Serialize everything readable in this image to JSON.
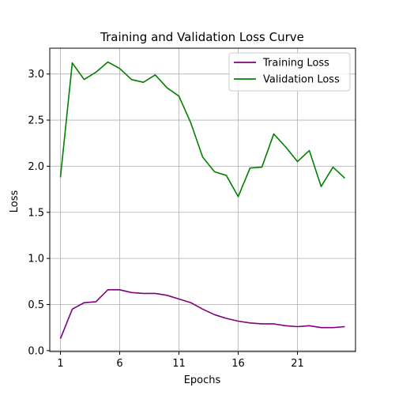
{
  "chart_data": {
    "type": "line",
    "title": "Training and Validation Loss Curve",
    "xlabel": "Epochs",
    "ylabel": "Loss",
    "x": [
      1,
      2,
      3,
      4,
      5,
      6,
      7,
      8,
      9,
      10,
      11,
      12,
      13,
      14,
      15,
      16,
      17,
      18,
      19,
      20,
      21,
      22,
      23,
      24,
      25
    ],
    "xticks": [
      1,
      6,
      11,
      16,
      21
    ],
    "yticks": [
      0.0,
      0.5,
      1.0,
      1.5,
      2.0,
      2.5,
      3.0
    ],
    "xlim": [
      0.1,
      25.9
    ],
    "ylim": [
      -0.01,
      3.28
    ],
    "grid": true,
    "legend_position": "top-right",
    "series": [
      {
        "name": "Training Loss",
        "color": "#800080",
        "values": [
          0.13,
          0.45,
          0.52,
          0.53,
          0.66,
          0.66,
          0.63,
          0.62,
          0.62,
          0.6,
          0.56,
          0.52,
          0.45,
          0.39,
          0.35,
          0.32,
          0.3,
          0.29,
          0.29,
          0.27,
          0.26,
          0.27,
          0.25,
          0.25,
          0.26
        ]
      },
      {
        "name": "Validation Loss",
        "color": "#008000",
        "values": [
          1.88,
          3.12,
          2.94,
          3.02,
          3.13,
          3.06,
          2.94,
          2.91,
          2.99,
          2.85,
          2.76,
          2.47,
          2.1,
          1.94,
          1.9,
          1.67,
          1.98,
          1.99,
          2.35,
          2.21,
          2.05,
          2.17,
          1.78,
          1.99,
          1.87
        ]
      }
    ]
  }
}
